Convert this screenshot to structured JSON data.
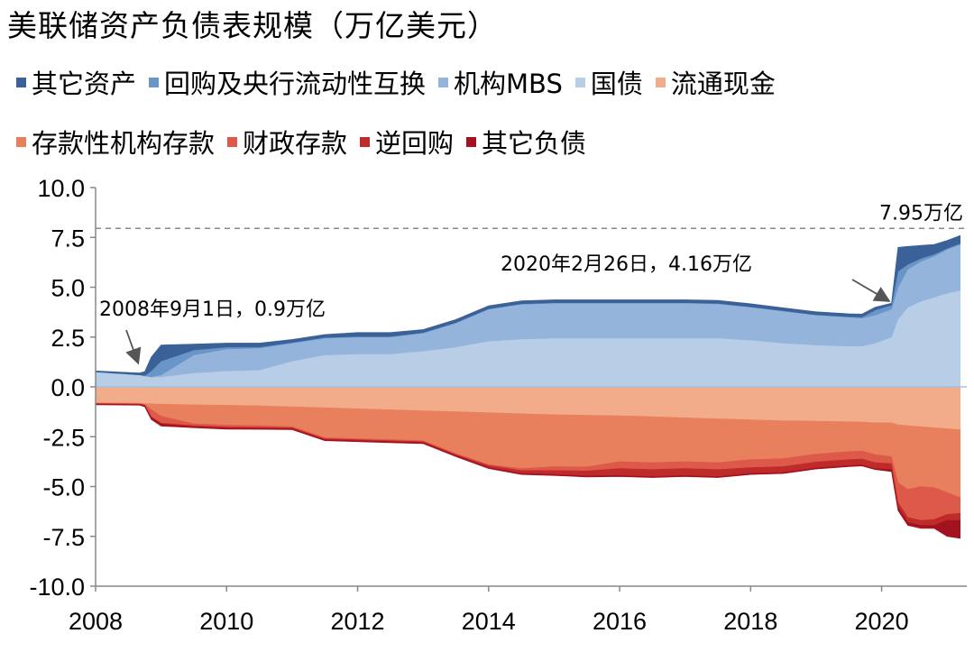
{
  "chart_data": {
    "type": "area",
    "title": "美联储资产负债表规模（万亿美元）",
    "xlabel": "",
    "ylabel": "",
    "xlim": [
      2008,
      2021.3
    ],
    "ylim": [
      -10.0,
      10.0
    ],
    "x_ticks": [
      2008,
      2010,
      2012,
      2014,
      2016,
      2018,
      2020
    ],
    "y_ticks": [
      "10.0",
      "7.5",
      "5.0",
      "2.5",
      "0.0",
      "-2.5",
      "-5.0",
      "-7.5",
      "-10.0"
    ],
    "x": [
      2008.0,
      2008.67,
      2008.75,
      2008.85,
      2009.0,
      2009.5,
      2010.0,
      2010.5,
      2011.0,
      2011.5,
      2012.0,
      2012.5,
      2013.0,
      2013.5,
      2014.0,
      2014.5,
      2015.0,
      2015.5,
      2016.0,
      2016.5,
      2017.0,
      2017.5,
      2018.0,
      2018.5,
      2019.0,
      2019.5,
      2019.7,
      2019.9,
      2020.15,
      2020.25,
      2020.4,
      2020.6,
      2020.8,
      2021.0,
      2021.2
    ],
    "asset_series": [
      {
        "name": "国债",
        "color": "#b8cde6",
        "values": [
          0.75,
          0.6,
          0.55,
          0.5,
          0.5,
          0.7,
          0.8,
          0.85,
          1.3,
          1.6,
          1.65,
          1.65,
          1.8,
          2.0,
          2.3,
          2.4,
          2.45,
          2.45,
          2.45,
          2.45,
          2.45,
          2.45,
          2.35,
          2.2,
          2.1,
          2.05,
          2.05,
          2.2,
          2.5,
          3.4,
          4.0,
          4.3,
          4.5,
          4.7,
          4.85
        ]
      },
      {
        "name": "机构MBS",
        "color": "#94b4dc",
        "values": [
          0,
          0,
          0,
          0,
          0.1,
          0.9,
          1.1,
          1.1,
          0.9,
          0.85,
          0.85,
          0.85,
          0.9,
          1.2,
          1.6,
          1.75,
          1.75,
          1.75,
          1.75,
          1.75,
          1.75,
          1.72,
          1.65,
          1.6,
          1.5,
          1.45,
          1.4,
          1.4,
          1.4,
          1.6,
          1.9,
          2.0,
          2.05,
          2.2,
          2.3
        ]
      },
      {
        "name": "回购及央行流动性互换",
        "color": "#6a95c9",
        "values": [
          0,
          0,
          0.02,
          0.3,
          0.7,
          0.25,
          0.1,
          0.05,
          0.03,
          0.03,
          0.03,
          0.03,
          0.03,
          0.03,
          0.02,
          0.02,
          0.02,
          0.02,
          0.02,
          0.02,
          0.02,
          0.02,
          0.02,
          0.02,
          0.02,
          0.02,
          0.05,
          0.25,
          0.2,
          0.8,
          0.25,
          0.15,
          0.1,
          0.05,
          0.05
        ]
      },
      {
        "name": "其它资产",
        "color": "#3a6298",
        "values": [
          0.05,
          0.1,
          0.2,
          0.7,
          0.8,
          0.3,
          0.2,
          0.2,
          0.15,
          0.15,
          0.2,
          0.2,
          0.15,
          0.15,
          0.15,
          0.15,
          0.15,
          0.15,
          0.15,
          0.15,
          0.15,
          0.15,
          0.15,
          0.15,
          0.15,
          0.15,
          0.15,
          0.15,
          0.1,
          1.2,
          0.9,
          0.65,
          0.5,
          0.4,
          0.4
        ]
      }
    ],
    "liability_series": [
      {
        "name": "流通现金",
        "color": "#f2ac8a",
        "values": [
          -0.8,
          -0.82,
          -0.84,
          -0.85,
          -0.87,
          -0.9,
          -0.92,
          -0.95,
          -1.0,
          -1.05,
          -1.1,
          -1.15,
          -1.2,
          -1.25,
          -1.3,
          -1.35,
          -1.4,
          -1.42,
          -1.45,
          -1.5,
          -1.55,
          -1.6,
          -1.65,
          -1.7,
          -1.72,
          -1.75,
          -1.77,
          -1.8,
          -1.8,
          -1.9,
          -1.95,
          -2.0,
          -2.05,
          -2.1,
          -2.15
        ]
      },
      {
        "name": "存款性机构存款",
        "color": "#e8805e",
        "values": [
          -0.03,
          -0.03,
          -0.05,
          -0.3,
          -0.6,
          -0.95,
          -1.0,
          -1.0,
          -1.0,
          -1.5,
          -1.5,
          -1.5,
          -1.5,
          -2.1,
          -2.6,
          -2.75,
          -2.6,
          -2.6,
          -2.3,
          -2.3,
          -2.2,
          -2.2,
          -2.0,
          -1.9,
          -1.65,
          -1.5,
          -1.45,
          -1.6,
          -1.7,
          -2.9,
          -3.2,
          -3.0,
          -3.0,
          -3.2,
          -3.4
        ]
      },
      {
        "name": "财政存款",
        "color": "#dd5a4a",
        "values": [
          -0.01,
          -0.01,
          -0.02,
          -0.35,
          -0.35,
          -0.1,
          -0.1,
          -0.08,
          -0.05,
          -0.05,
          -0.05,
          -0.05,
          -0.05,
          -0.05,
          -0.05,
          -0.1,
          -0.2,
          -0.2,
          -0.35,
          -0.35,
          -0.35,
          -0.35,
          -0.4,
          -0.4,
          -0.4,
          -0.4,
          -0.4,
          -0.4,
          -0.35,
          -1.0,
          -1.4,
          -1.7,
          -1.6,
          -1.1,
          -0.8
        ]
      },
      {
        "name": "逆回购",
        "color": "#bf2a2a",
        "values": [
          -0.03,
          -0.03,
          -0.04,
          -0.04,
          -0.05,
          -0.05,
          -0.05,
          -0.05,
          -0.05,
          -0.05,
          -0.05,
          -0.05,
          -0.05,
          -0.05,
          -0.1,
          -0.15,
          -0.2,
          -0.25,
          -0.35,
          -0.35,
          -0.35,
          -0.35,
          -0.3,
          -0.3,
          -0.3,
          -0.3,
          -0.3,
          -0.3,
          -0.3,
          -0.25,
          -0.25,
          -0.25,
          -0.3,
          -0.3,
          -0.35
        ]
      },
      {
        "name": "其它负债",
        "color": "#a3121f",
        "values": [
          -0.03,
          -0.03,
          -0.05,
          -0.1,
          -0.1,
          -0.05,
          -0.05,
          -0.05,
          -0.05,
          -0.05,
          -0.05,
          -0.05,
          -0.05,
          -0.05,
          -0.05,
          -0.05,
          -0.05,
          -0.05,
          -0.05,
          -0.05,
          -0.05,
          -0.05,
          -0.05,
          -0.05,
          -0.05,
          -0.05,
          -0.05,
          -0.05,
          -0.1,
          -0.15,
          -0.15,
          -0.15,
          -0.15,
          -0.8,
          -0.9
        ]
      }
    ],
    "legend_row1": [
      "其它资产",
      "回购及央行流动性互换",
      "机构MBS",
      "国债",
      "流通现金"
    ],
    "legend_row2": [
      "存款性机构存款",
      "财政存款",
      "逆回购",
      "其它负债"
    ],
    "reference_line": {
      "value": 7.95,
      "label": "7.95万亿",
      "style": "dashed",
      "color": "#888888"
    },
    "annotations": [
      {
        "text": "2008年9月1日，0.9万亿",
        "points_to_x": 2008.67,
        "points_to_y": 0.9
      },
      {
        "text": "2020年2月26日，4.16万亿",
        "points_to_x": 2020.15,
        "points_to_y": 4.16
      }
    ],
    "grid": false,
    "legend_position": "top"
  }
}
